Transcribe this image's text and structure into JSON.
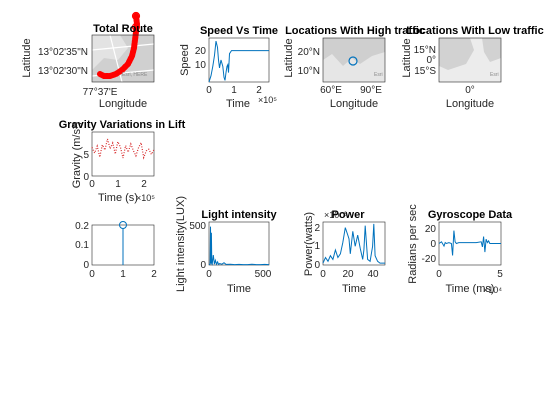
{
  "colors": {
    "series": "#0072BD",
    "route": "#FF0000",
    "gravity": "#D62728",
    "map_land": "#d9d9d9",
    "map_bg": "#eeeeee"
  },
  "chart_data": [
    {
      "id": "route",
      "type": "scatter",
      "title": "Total Route",
      "xlabel": "Longitude",
      "ylabel": "Latitude",
      "x_ticks": [
        "77°37'E"
      ],
      "y_ticks": [
        "13°02'35\"N",
        "13°02'30\"N"
      ],
      "attribution": "Esri, HERE",
      "note": "geographic basemap with dense red marker trail"
    },
    {
      "id": "speed",
      "type": "line",
      "title": "Speed Vs Time",
      "xlabel": "Time",
      "ylabel": "Speed",
      "x_exponent": "×10⁵",
      "xlim": [
        0,
        2.4
      ],
      "ylim": [
        0,
        28
      ],
      "x_ticks": [
        "0",
        "1",
        "2"
      ],
      "y_ticks": [
        "10",
        "20"
      ],
      "x": [
        0.0,
        0.08,
        0.15,
        0.22,
        0.28,
        0.34,
        0.38,
        0.42,
        0.48,
        0.55,
        0.6,
        0.64,
        0.68,
        0.72,
        0.75,
        0.78,
        0.82,
        0.9,
        1.0,
        1.3,
        1.6,
        2.0,
        2.4
      ],
      "y": [
        0,
        4,
        10,
        17,
        26,
        22,
        14,
        9,
        14,
        10,
        3,
        1,
        6,
        10,
        11,
        6,
        18,
        20,
        20,
        20,
        20,
        20,
        20
      ]
    },
    {
      "id": "high_traffic",
      "type": "scatter",
      "title": "Locations With High traffic",
      "xlabel": "Longitude",
      "ylabel": "Latitude",
      "x_ticks": [
        "60°E",
        "90°E"
      ],
      "y_ticks": [
        "20°N",
        "10°N"
      ],
      "attribution": "Esri",
      "note": "single circular marker on basemap"
    },
    {
      "id": "low_traffic",
      "type": "scatter",
      "title": "Locations With Low traffic",
      "xlabel": "Longitude",
      "ylabel": "Latitude",
      "x_ticks": [
        "0°"
      ],
      "y_ticks": [
        "15°N",
        "0°",
        "15°S"
      ],
      "attribution": "Esri",
      "note": "empty basemap, no markers"
    },
    {
      "id": "gravity",
      "type": "line",
      "title": "Gravity Variations in Lift",
      "xlabel": "Time (s)",
      "ylabel": "Gravity (m/s²)",
      "x_exponent": "×10⁵",
      "xlim": [
        0,
        2.4
      ],
      "ylim": [
        0,
        10
      ],
      "x_ticks": [
        "0",
        "1",
        "2"
      ],
      "y_ticks": [
        "0",
        "5"
      ],
      "line_style": "dotted",
      "x": [
        0.0,
        0.1,
        0.2,
        0.3,
        0.4,
        0.5,
        0.6,
        0.7,
        0.8,
        0.9,
        1.0,
        1.1,
        1.2,
        1.3,
        1.4,
        1.5,
        1.6,
        1.7,
        1.8,
        1.9,
        2.0,
        2.1,
        2.2,
        2.3,
        2.4
      ],
      "y": [
        6.5,
        5.2,
        6.8,
        4.3,
        7.1,
        5.9,
        8.4,
        6.2,
        7.5,
        5.0,
        7.8,
        6.6,
        4.1,
        6.9,
        5.4,
        7.3,
        5.8,
        4.6,
        6.4,
        7.6,
        4.2,
        5.7,
        6.1,
        4.9,
        6.0
      ]
    },
    {
      "id": "stem",
      "type": "scatter",
      "title": "",
      "xlabel": "",
      "ylabel": "",
      "xlim": [
        0,
        2
      ],
      "ylim": [
        0,
        0.2
      ],
      "x_ticks": [
        "0",
        "1",
        "2"
      ],
      "y_ticks": [
        "0",
        "0.1",
        "0.2"
      ],
      "x": [
        1
      ],
      "y": [
        0.2
      ],
      "style": "stem"
    },
    {
      "id": "light",
      "type": "line",
      "title": "Light intensity",
      "xlabel": "Time",
      "ylabel": "Light intensity(LUX)",
      "xlim": [
        0,
        560
      ],
      "ylim": [
        0,
        560
      ],
      "x_ticks": [
        "0",
        "500"
      ],
      "y_ticks": [
        "0",
        "500"
      ],
      "x": [
        0,
        10,
        14,
        18,
        22,
        26,
        30,
        40,
        50,
        60,
        70,
        80,
        90,
        100,
        120,
        140,
        160,
        200,
        240,
        280,
        320,
        360,
        400,
        440,
        480,
        520,
        560
      ],
      "y": [
        5,
        10,
        500,
        20,
        420,
        15,
        8,
        130,
        12,
        60,
        10,
        40,
        8,
        20,
        10,
        30,
        8,
        10,
        5,
        8,
        5,
        5,
        10,
        5,
        5,
        8,
        5
      ]
    },
    {
      "id": "power",
      "type": "line",
      "title": "Power",
      "xlabel": "Time",
      "ylabel": "Power(watts)",
      "y_exponent": "×10⁻³",
      "xlim": [
        0,
        50
      ],
      "ylim": [
        0,
        2.3
      ],
      "x_ticks": [
        "0",
        "20",
        "40"
      ],
      "y_ticks": [
        "0",
        "1",
        "2"
      ],
      "x": [
        0,
        2,
        4,
        6,
        8,
        10,
        12,
        14,
        16,
        18,
        20,
        21,
        22,
        24,
        26,
        28,
        30,
        32,
        33,
        34,
        36,
        38,
        40,
        41,
        42,
        44,
        46,
        48,
        50
      ],
      "y": [
        0.1,
        0.4,
        0.2,
        0.5,
        0.3,
        0.8,
        0.4,
        0.6,
        1.2,
        2.0,
        1.6,
        1.4,
        0.6,
        1.8,
        1.0,
        1.6,
        0.9,
        0.3,
        0.8,
        2.1,
        0.3,
        0.2,
        1.0,
        2.2,
        0.5,
        0.2,
        0.1,
        0.1,
        0.1
      ]
    },
    {
      "id": "gyro",
      "type": "line",
      "title": "Gyroscope Data",
      "xlabel": "Time (ms)",
      "ylabel": "Radians per sec",
      "x_exponent": "×10⁴",
      "xlim": [
        0,
        5
      ],
      "ylim": [
        -25,
        25
      ],
      "x_ticks": [
        "0",
        "5"
      ],
      "y_ticks": [
        "-20",
        "0",
        "20"
      ],
      "x": [
        0.0,
        0.2,
        0.4,
        0.5,
        0.6,
        0.8,
        1.0,
        1.1,
        1.2,
        1.3,
        1.4,
        1.6,
        2.0,
        2.5,
        3.0,
        3.4,
        3.5,
        3.6,
        3.7,
        3.8,
        3.9,
        4.0,
        4.1,
        4.2,
        4.5,
        5.0
      ],
      "y": [
        0,
        2,
        -3,
        1,
        0,
        1,
        0,
        -14,
        15,
        2,
        0,
        1,
        1,
        1,
        1,
        2,
        -4,
        8,
        -10,
        5,
        1,
        3,
        0,
        0,
        0,
        0
      ]
    }
  ]
}
